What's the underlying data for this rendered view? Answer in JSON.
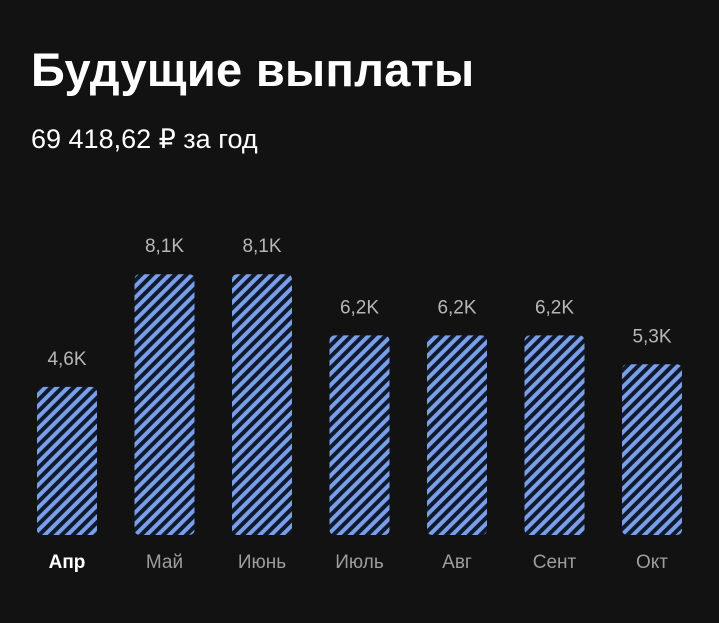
{
  "header": {
    "title": "Будущие выплаты",
    "subtitle": "69 418,62 ₽ за год"
  },
  "colors": {
    "background": "#121212",
    "bar_fill": "#0f1a2e",
    "bar_stripe": "#7a9fe6",
    "value_text": "#b7b7b7",
    "label_text": "#9d9d9d",
    "active_label_text": "#ffffff"
  },
  "chart_data": {
    "type": "bar",
    "categories": [
      "Апр",
      "Май",
      "Июнь",
      "Июль",
      "Авг",
      "Сент",
      "Окт"
    ],
    "values": [
      4.6,
      8.1,
      8.1,
      6.2,
      6.2,
      6.2,
      5.3
    ],
    "value_labels": [
      "4,6K",
      "8,1K",
      "8,1K",
      "6,2K",
      "6,2K",
      "6,2K",
      "5,3K"
    ],
    "selected_category": "Апр",
    "unit": "K ₽",
    "grid": false,
    "bar_style": "diagonal-hatched"
  }
}
